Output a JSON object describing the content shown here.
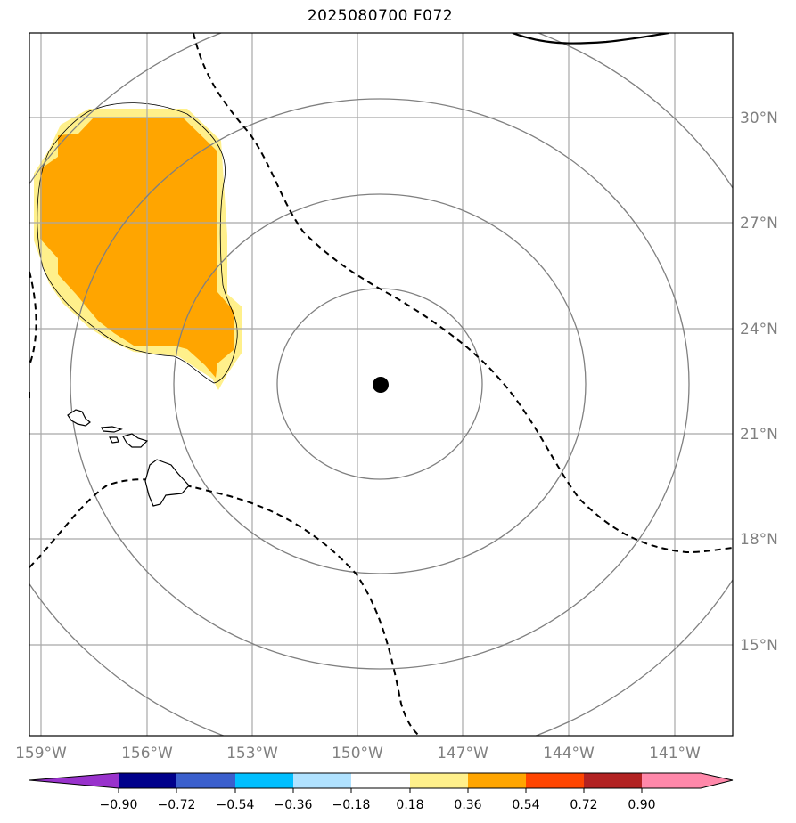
{
  "title": "2025080700 F072",
  "map": {
    "lon_labels": [
      "159°W",
      "156°W",
      "153°W",
      "150°W",
      "147°W",
      "144°W",
      "141°W"
    ],
    "lat_labels": [
      "30°N",
      "27°N",
      "24°N",
      "21°N",
      "18°N",
      "15°N"
    ],
    "center_marker": "storm-center-dot",
    "range_rings": 4,
    "colors": {
      "grid": "#a0a0a0",
      "rings": "#808080",
      "coast": "#000000",
      "shade_light": "#ffec8b",
      "shade_dark": "#ffa500"
    }
  },
  "colorbar": {
    "tick_labels": [
      "−0.90",
      "−0.72",
      "−0.54",
      "−0.36",
      "−0.18",
      "0.18",
      "0.36",
      "0.54",
      "0.72",
      "0.90"
    ],
    "colors": [
      "#9932cc",
      "#00008b",
      "#3a5fcd",
      "#00bfff",
      "#b0e2ff",
      "#ffffff",
      "#fff08b",
      "#ffa500",
      "#ff4500",
      "#b22222",
      "#ff88aa"
    ]
  }
}
